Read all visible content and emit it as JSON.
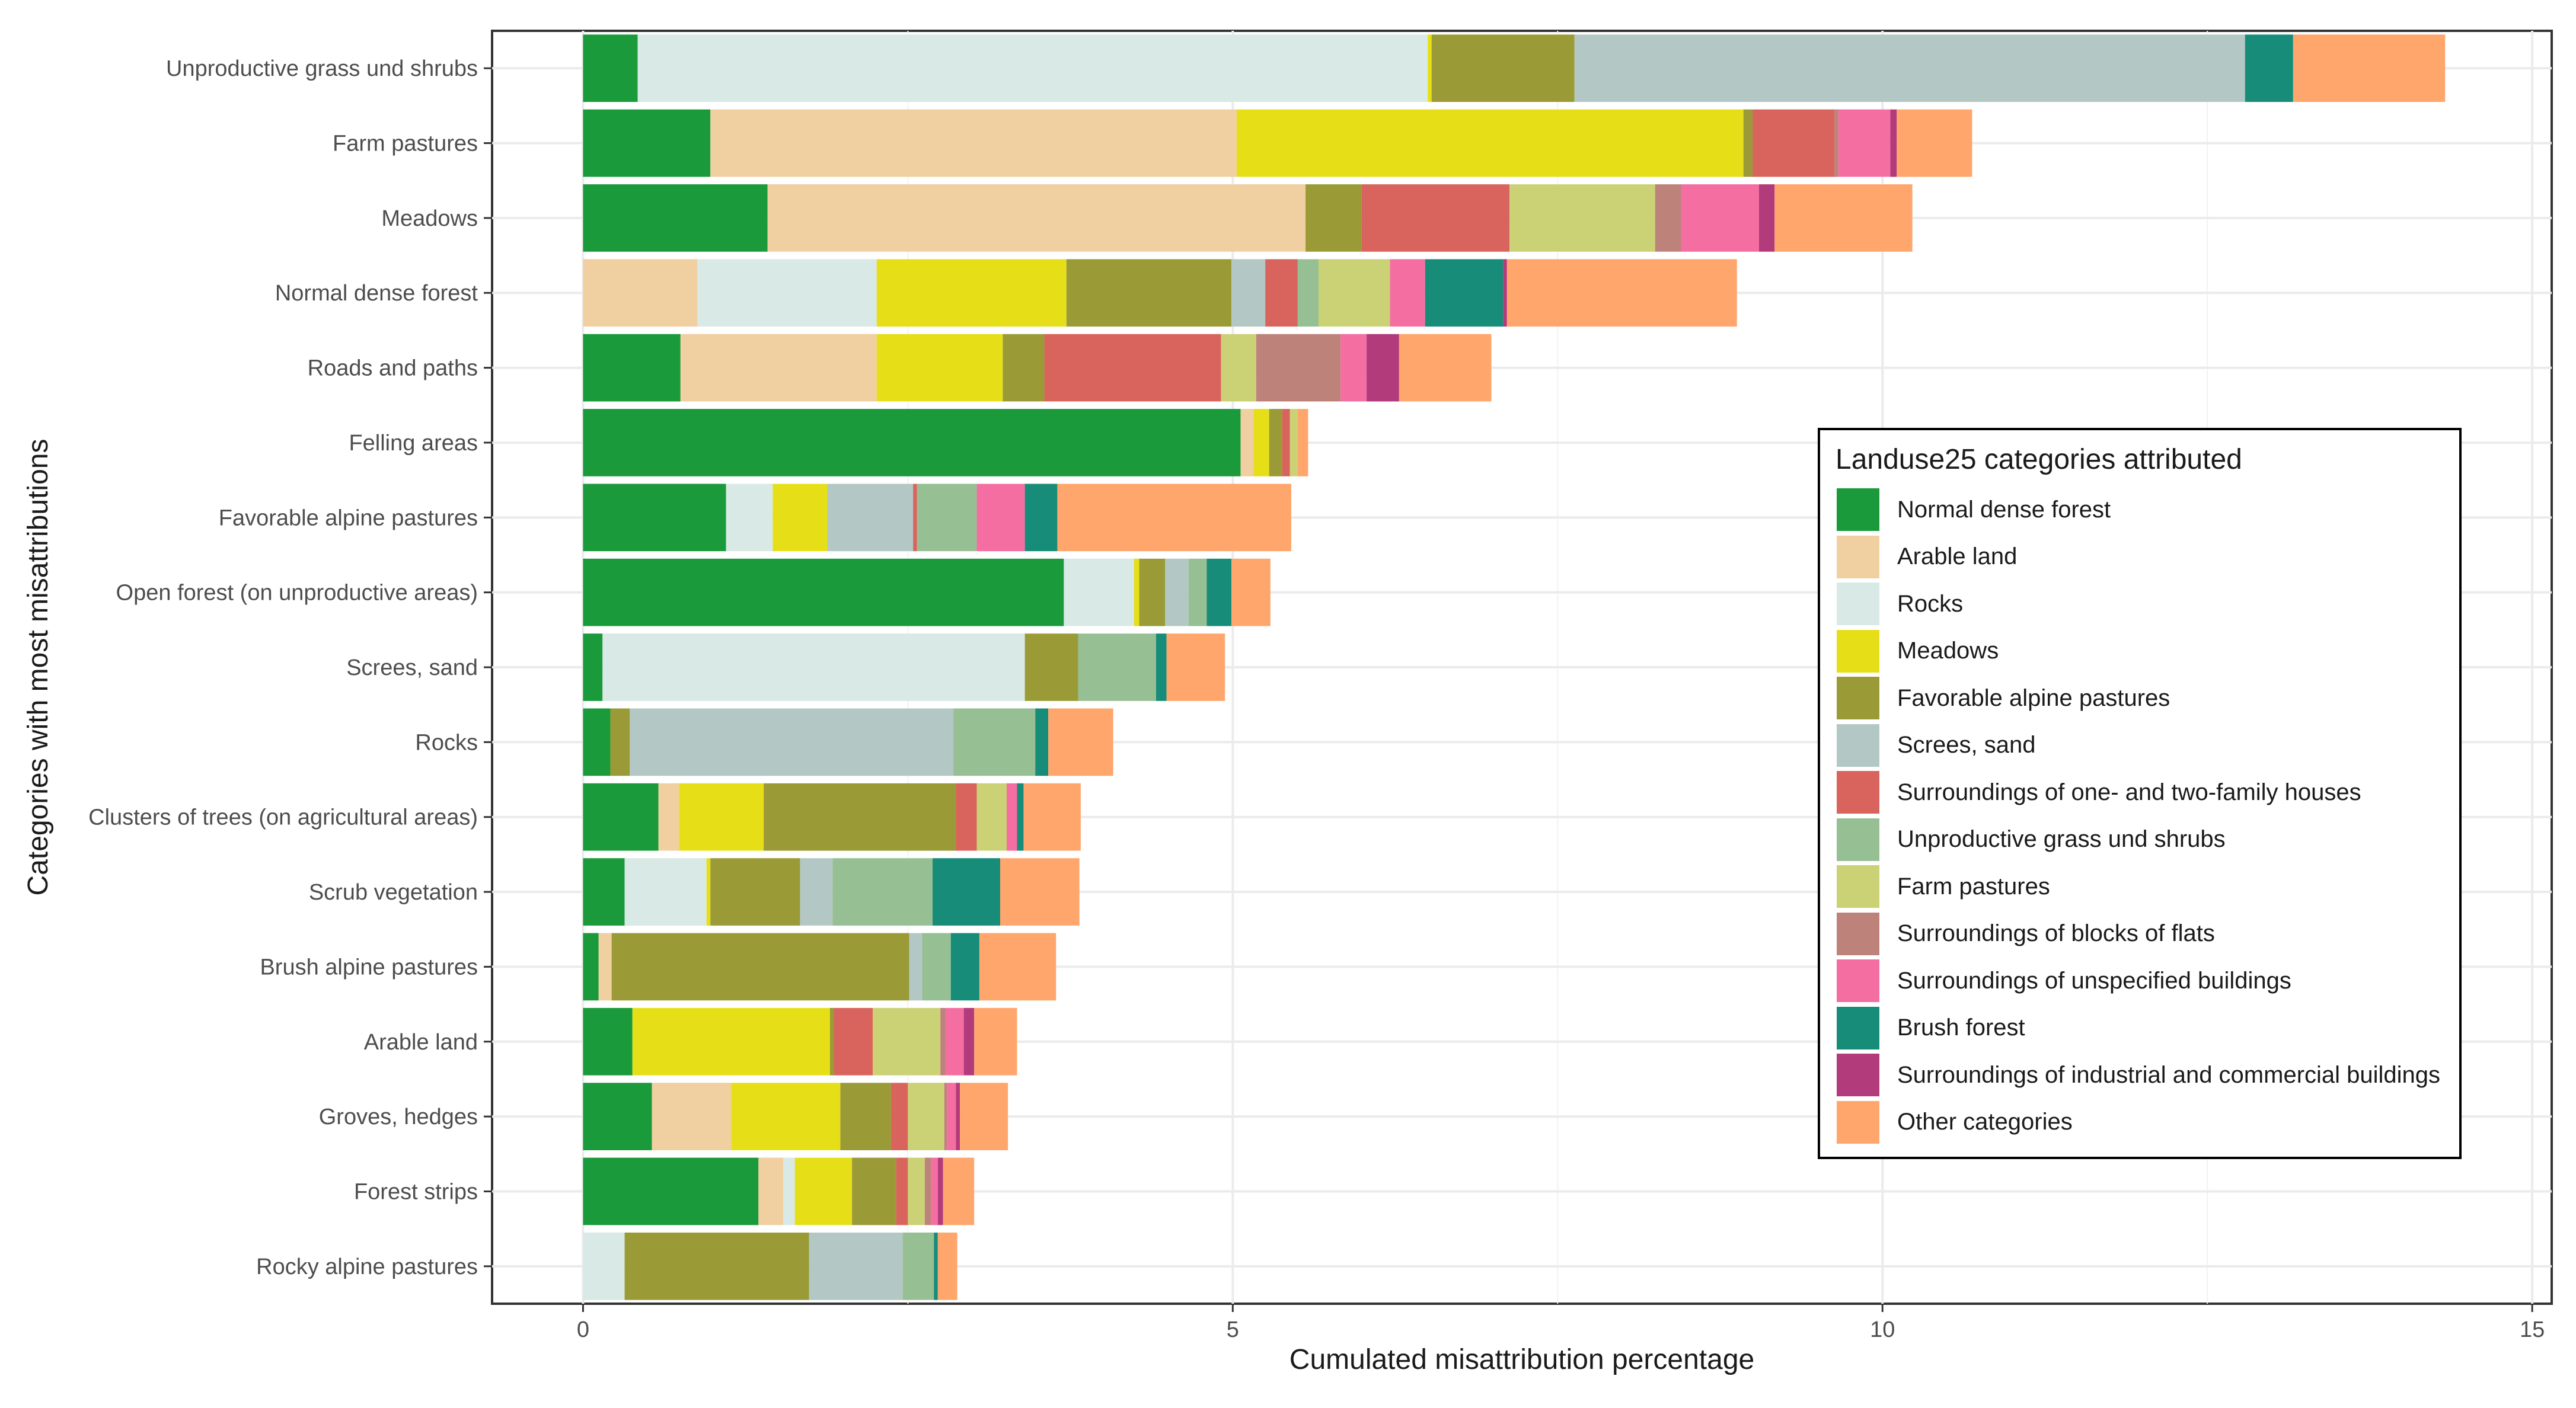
{
  "chart_data": {
    "type": "bar",
    "orientation": "horizontal",
    "stacked": true,
    "xlabel": "Cumulated misattribution percentage",
    "ylabel": "Categories with most misattributions",
    "xlim": [
      -0.7,
      15.15
    ],
    "xticks": [
      0,
      5,
      10,
      15
    ],
    "xtick_labels": [
      "0",
      "5",
      "10",
      "15"
    ],
    "grid": true,
    "legend_title": "Landuse25 categories attributed",
    "legend_position": "right",
    "series": [
      {
        "name": "Normal dense forest",
        "color": "#1a9a3a"
      },
      {
        "name": "Arable land",
        "color": "#f0cfa0"
      },
      {
        "name": "Rocks",
        "color": "#d9e9e6"
      },
      {
        "name": "Meadows",
        "color": "#e6df18"
      },
      {
        "name": "Favorable alpine pastures",
        "color": "#9a9b36"
      },
      {
        "name": "Screes, sand",
        "color": "#b3c8c4"
      },
      {
        "name": "Surroundings of one- and two-family houses",
        "color": "#d9645d"
      },
      {
        "name": "Unproductive grass und shrubs",
        "color": "#97bf94"
      },
      {
        "name": "Farm pastures",
        "color": "#cbd275"
      },
      {
        "name": "Surroundings of blocks of flats",
        "color": "#bd827a"
      },
      {
        "name": "Surroundings of unspecified buildings",
        "color": "#f46ea2"
      },
      {
        "name": "Brush forest",
        "color": "#178c78"
      },
      {
        "name": "Surroundings of industrial and commercial buildings",
        "color": "#b23b7c"
      },
      {
        "name": "Other categories",
        "color": "#ffa66d"
      }
    ],
    "categories": [
      "Unproductive grass und shrubs",
      "Farm pastures",
      "Meadows",
      "Normal dense forest",
      "Roads and paths",
      "Felling areas",
      "Favorable alpine pastures",
      "Open forest (on unproductive areas)",
      "Screes, sand",
      "Rocks",
      "Clusters of trees (on agricultural areas)",
      "Scrub vegetation",
      "Brush alpine pastures",
      "Arable land",
      "Groves, hedges",
      "Forest strips",
      "Rocky alpine pastures"
    ],
    "values": [
      [
        0.42,
        0,
        6.08,
        0.03,
        1.1,
        5.16,
        0,
        0,
        0,
        0,
        0,
        0.37,
        0,
        1.17
      ],
      [
        0.98,
        4.05,
        0,
        3.9,
        0.07,
        0,
        0.63,
        0,
        0,
        0.03,
        0.4,
        0,
        0.05,
        0.58
      ],
      [
        1.42,
        4.14,
        0,
        0,
        0.43,
        0,
        1.14,
        0,
        1.12,
        0.2,
        0.6,
        0,
        0.12,
        1.06
      ],
      [
        0,
        0.88,
        1.38,
        1.46,
        1.27,
        0.26,
        0.25,
        0.16,
        0.55,
        0,
        0.27,
        0.6,
        0.03,
        1.77
      ],
      [
        0.75,
        1.51,
        0,
        0.97,
        0.32,
        0,
        1.36,
        0,
        0.27,
        0.65,
        0.2,
        0,
        0.25,
        0.71
      ],
      [
        5.06,
        0.1,
        0,
        0.12,
        0.1,
        0,
        0.06,
        0,
        0.06,
        0,
        0,
        0,
        0,
        0.08
      ],
      [
        1.1,
        0,
        0.36,
        0.42,
        0,
        0.66,
        0.03,
        0.46,
        0,
        0,
        0.37,
        0.25,
        0,
        1.8
      ],
      [
        3.7,
        0,
        0.54,
        0.04,
        0.2,
        0.18,
        0,
        0.14,
        0,
        0,
        0,
        0.19,
        0,
        0.3
      ],
      [
        0.15,
        0,
        3.25,
        0,
        0.41,
        0,
        0,
        0.6,
        0,
        0,
        0,
        0.08,
        0,
        0.45
      ],
      [
        0.21,
        0,
        0,
        0,
        0.15,
        2.49,
        0,
        0.63,
        0,
        0,
        0,
        0.1,
        0,
        0.5
      ],
      [
        0.58,
        0.16,
        0,
        0.65,
        1.48,
        0,
        0.16,
        0,
        0.23,
        0,
        0.08,
        0.05,
        0,
        0.44
      ],
      [
        0.32,
        0,
        0.63,
        0.03,
        0.69,
        0.25,
        0,
        0.77,
        0,
        0,
        0,
        0.52,
        0,
        0.61
      ],
      [
        0.12,
        0.1,
        0,
        0,
        2.29,
        0.1,
        0,
        0.22,
        0,
        0,
        0,
        0.22,
        0,
        0.59
      ],
      [
        0.38,
        0,
        0,
        1.52,
        0.03,
        0,
        0.3,
        0,
        0.52,
        0.04,
        0.14,
        0,
        0.08,
        0.33
      ],
      [
        0.53,
        0.61,
        0,
        0.84,
        0.39,
        0,
        0.13,
        0,
        0.28,
        0.02,
        0.07,
        0,
        0.03,
        0.37
      ],
      [
        1.35,
        0.19,
        0.09,
        0.44,
        0.34,
        0,
        0.09,
        0,
        0.13,
        0.05,
        0.05,
        0,
        0.04,
        0.24
      ],
      [
        0,
        0,
        0.32,
        0,
        1.42,
        0.72,
        0,
        0.24,
        0,
        0,
        0,
        0.03,
        0,
        0.15
      ]
    ]
  }
}
